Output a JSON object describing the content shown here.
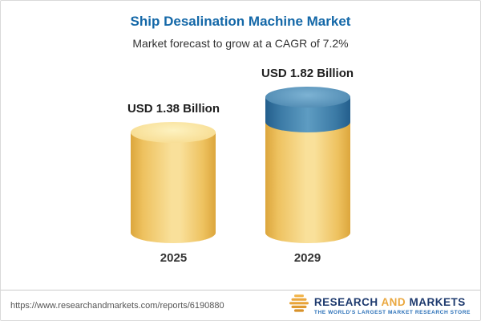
{
  "chart_data": {
    "type": "bar",
    "title": "Ship Desalination Machine Market",
    "subtitle": "Market forecast to grow at a CAGR of 7.2%",
    "cagr": "7.2%",
    "unit": "USD Billion",
    "categories": [
      "2025",
      "2029"
    ],
    "values": [
      1.38,
      1.82
    ],
    "value_labels": [
      "USD 1.38 Billion",
      "USD 1.82 Billion"
    ],
    "ylim": [
      0,
      2
    ],
    "legend_position": "none",
    "grid": false,
    "bar_style": "3d-cylinder",
    "bar_base_color": "#f5d67e",
    "growth_segment_color": "#4c88b1"
  },
  "colors": {
    "title_blue": "#1468a8",
    "bar_yellow": "#f5d67e",
    "bar_blue": "#4c88b1",
    "logo_navy": "#1e3a6e",
    "logo_gold": "#eaa73e",
    "card_border": "#d9d9d9"
  },
  "footer": {
    "url": "https://www.researchandmarkets.com/reports/6190880",
    "logo": {
      "icon": "gold-stacked-bars-globe-icon",
      "word1": "RESEARCH",
      "word2": "AND",
      "word3": "MARKETS",
      "tagline": "THE WORLD'S LARGEST MARKET RESEARCH STORE"
    }
  }
}
